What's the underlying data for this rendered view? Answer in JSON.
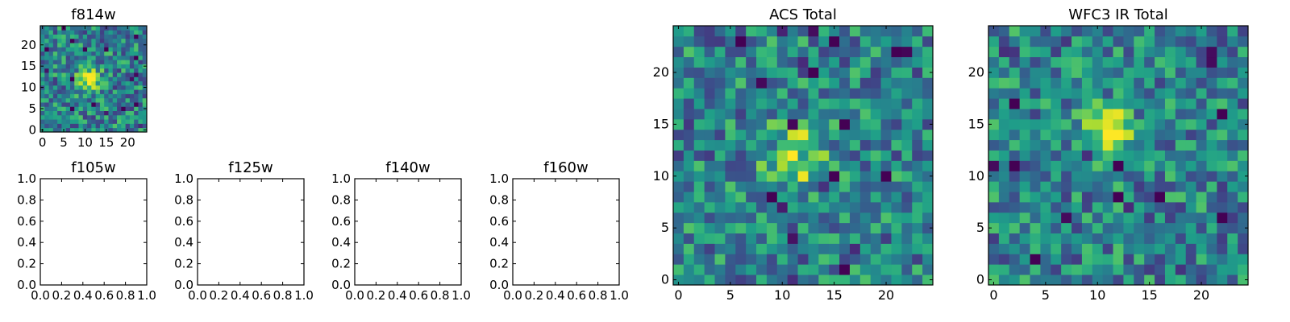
{
  "chart_data": [
    {
      "type": "heatmap",
      "title": "f814w",
      "xlim": [
        -0.5,
        24.5
      ],
      "ylim": [
        -0.5,
        24.5
      ],
      "xticks": [
        0,
        5,
        10,
        15,
        20
      ],
      "yticks": [
        0,
        5,
        10,
        15,
        20
      ],
      "xtick_labels": [
        "0",
        "5",
        "10",
        "15",
        "20"
      ],
      "ytick_labels": [
        "0",
        "5",
        "10",
        "15",
        "20"
      ],
      "grid": false,
      "colormap": "viridis",
      "source_center": [
        11,
        12
      ],
      "source_sigma": 1.8
    },
    {
      "type": "heatmap",
      "title": "f105w",
      "empty": true,
      "xlim": [
        0,
        1
      ],
      "ylim": [
        0,
        1
      ],
      "xticks": [
        0,
        0.2,
        0.4,
        0.6,
        0.8,
        1.0
      ],
      "yticks": [
        0,
        0.2,
        0.4,
        0.6,
        0.8,
        1.0
      ],
      "xtick_labels": [
        "0.0",
        "0.2",
        "0.4",
        "0.6",
        "0.8",
        "1.0"
      ],
      "ytick_labels": [
        "0.0",
        "0.2",
        "0.4",
        "0.6",
        "0.8",
        "1.0"
      ],
      "grid": false
    },
    {
      "type": "heatmap",
      "title": "f125w",
      "empty": true,
      "xlim": [
        0,
        1
      ],
      "ylim": [
        0,
        1
      ],
      "xticks": [
        0,
        0.2,
        0.4,
        0.6,
        0.8,
        1.0
      ],
      "yticks": [
        0,
        0.2,
        0.4,
        0.6,
        0.8,
        1.0
      ],
      "xtick_labels": [
        "0.0",
        "0.2",
        "0.4",
        "0.6",
        "0.8",
        "1.0"
      ],
      "ytick_labels": [
        "0.0",
        "0.2",
        "0.4",
        "0.6",
        "0.8",
        "1.0"
      ],
      "grid": false
    },
    {
      "type": "heatmap",
      "title": "f140w",
      "empty": true,
      "xlim": [
        0,
        1
      ],
      "ylim": [
        0,
        1
      ],
      "xticks": [
        0,
        0.2,
        0.4,
        0.6,
        0.8,
        1.0
      ],
      "yticks": [
        0,
        0.2,
        0.4,
        0.6,
        0.8,
        1.0
      ],
      "xtick_labels": [
        "0.0",
        "0.2",
        "0.4",
        "0.6",
        "0.8",
        "1.0"
      ],
      "ytick_labels": [
        "0.0",
        "0.2",
        "0.4",
        "0.6",
        "0.8",
        "1.0"
      ],
      "grid": false
    },
    {
      "type": "heatmap",
      "title": "f160w",
      "empty": true,
      "xlim": [
        0,
        1
      ],
      "ylim": [
        0,
        1
      ],
      "xticks": [
        0,
        0.2,
        0.4,
        0.6,
        0.8,
        1.0
      ],
      "yticks": [
        0,
        0.2,
        0.4,
        0.6,
        0.8,
        1.0
      ],
      "xtick_labels": [
        "0.0",
        "0.2",
        "0.4",
        "0.6",
        "0.8",
        "1.0"
      ],
      "ytick_labels": [
        "0.0",
        "0.2",
        "0.4",
        "0.6",
        "0.8",
        "1.0"
      ],
      "grid": false
    },
    {
      "type": "heatmap",
      "title": "ACS Total",
      "xlim": [
        -0.5,
        24.5
      ],
      "ylim": [
        -0.5,
        24.5
      ],
      "xticks": [
        0,
        5,
        10,
        15,
        20
      ],
      "yticks": [
        0,
        5,
        10,
        15,
        20
      ],
      "xtick_labels": [
        "0",
        "5",
        "10",
        "15",
        "20"
      ],
      "ytick_labels": [
        "0",
        "5",
        "10",
        "15",
        "20"
      ],
      "grid": false,
      "colormap": "viridis",
      "source_center": [
        11,
        12
      ],
      "source_sigma": 1.8
    },
    {
      "type": "heatmap",
      "title": "WFC3 IR Total",
      "xlim": [
        -0.5,
        24.5
      ],
      "ylim": [
        -0.5,
        24.5
      ],
      "xticks": [
        0,
        5,
        10,
        15,
        20
      ],
      "yticks": [
        0,
        5,
        10,
        15,
        20
      ],
      "xtick_labels": [
        "0",
        "5",
        "10",
        "15",
        "20"
      ],
      "ytick_labels": [
        "0",
        "5",
        "10",
        "15",
        "20"
      ],
      "grid": false,
      "colormap": "viridis",
      "source_center": [
        11,
        14
      ],
      "source_sigma": 1.8
    }
  ]
}
